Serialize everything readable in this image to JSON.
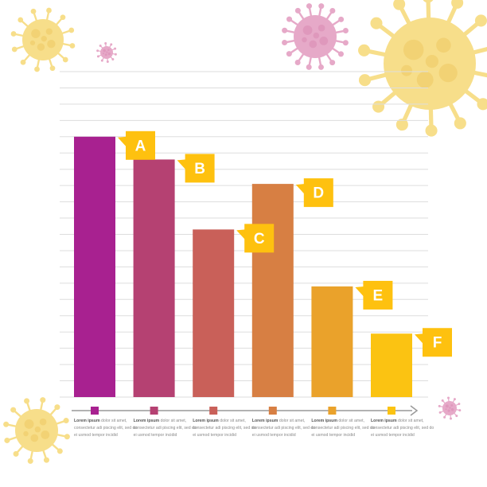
{
  "chart_data": {
    "type": "bar",
    "categories": [
      "A",
      "B",
      "C",
      "D",
      "E",
      "F"
    ],
    "values": [
      16.0,
      14.6,
      10.3,
      13.1,
      6.8,
      3.9
    ],
    "ylim": [
      0,
      20
    ],
    "grid": true,
    "legend": "bottom",
    "colors": [
      "#A82190",
      "#B54172",
      "#C96059",
      "#D77F43",
      "#EAA22B",
      "#FBC312"
    ],
    "label_color": "#FEC10F",
    "captions": [
      {
        "bold": "Lorem ipsum",
        "rest": "dolor sit amet, consectetur adi piscing elit, sed do ei usmod tempor incidid"
      },
      {
        "bold": "Lorem ipsum",
        "rest": "dolor sit amet, consectetur adi piscing elit, sed do ei usmod tempor incidid"
      },
      {
        "bold": "Lorem ipsum",
        "rest": "dolor sit amet, consectetur adi piscing elit, sed do ei usmod tempor incidid"
      },
      {
        "bold": "Lorem ipsum",
        "rest": "dolor sit amet, consectetur adi piscing elit, sed do ei usmod tempor incidid"
      },
      {
        "bold": "Lorem ipsum",
        "rest": "dolor sit amet, consectetur adi piscing elit, sed do ei usmod tempor incidid"
      },
      {
        "bold": "Lorem ipsum",
        "rest": "dolor sit amet, consectetur adi piscing elit, sed do ei usmod tempor incidid"
      }
    ]
  },
  "decor": {
    "virus_yellow": "#F7DE8A",
    "virus_yellow_dark": "#EFC862",
    "virus_pink": "#E6A9C8",
    "virus_pink_dark": "#D98BB3",
    "grid_color": "#DDDDDD",
    "axis_color": "#999999"
  }
}
